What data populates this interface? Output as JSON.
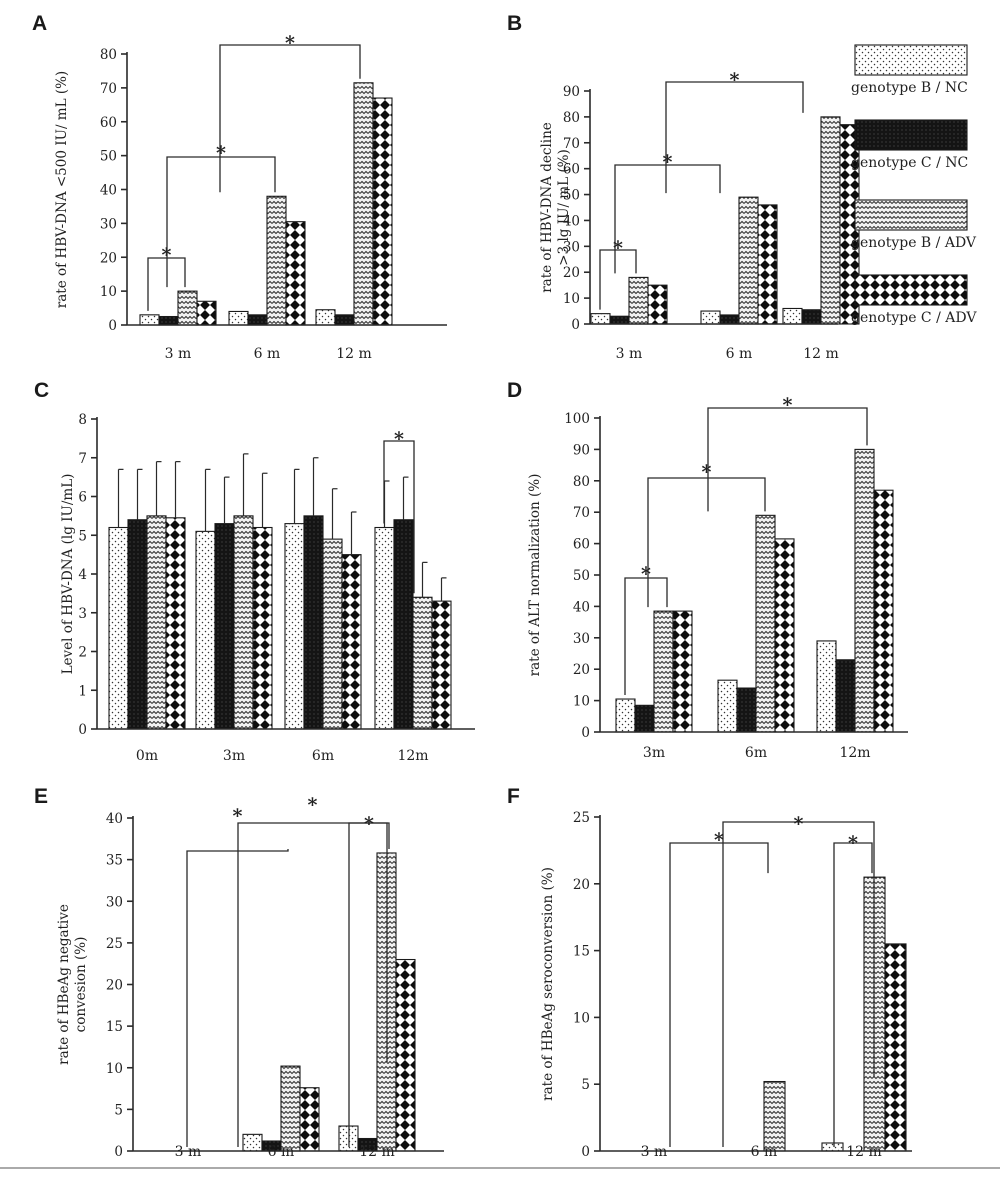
{
  "legend": [
    {
      "label": "genotype B / NC",
      "pattern": "dots"
    },
    {
      "label": "genotype C / NC",
      "pattern": "black"
    },
    {
      "label": "genotype B / ADV",
      "pattern": "zigzag"
    },
    {
      "label": "genotype C / ADV",
      "pattern": "diamond"
    }
  ],
  "chart_data": [
    {
      "panel": "A",
      "type": "bar",
      "ylabel": "rate of HBV-DNA <500 IU/ mL (%)",
      "ylim": [
        0,
        80
      ],
      "yticks": [
        0,
        10,
        20,
        30,
        40,
        50,
        60,
        70,
        80
      ],
      "categories": [
        "3 m",
        "6 m",
        "12 m"
      ],
      "series": [
        {
          "name": "genotype B / NC",
          "values": [
            3,
            4,
            4.5
          ]
        },
        {
          "name": "genotype C / NC",
          "values": [
            2.5,
            3,
            3
          ]
        },
        {
          "name": "genotype B / ADV",
          "values": [
            10,
            38,
            71.5
          ]
        },
        {
          "name": "genotype C / ADV",
          "values": [
            7,
            30.5,
            67
          ]
        }
      ],
      "significance": [
        {
          "from": [
            0,
            0
          ],
          "to": [
            0,
            2
          ],
          "label": "*"
        },
        {
          "from": [
            0,
            2
          ],
          "to": [
            1,
            2
          ],
          "label": "*"
        },
        {
          "from": [
            1,
            2
          ],
          "to": [
            2,
            2
          ],
          "label": "*"
        }
      ]
    },
    {
      "panel": "B",
      "type": "bar",
      "ylabel": [
        "rate of HBV-DNA decline",
        ">3 lg IU/ mL (%)"
      ],
      "ylim": [
        0,
        90
      ],
      "yticks": [
        0,
        10,
        20,
        30,
        40,
        50,
        60,
        70,
        80,
        90
      ],
      "categories": [
        "3 m",
        "6 m",
        "12 m"
      ],
      "series": [
        {
          "name": "genotype B / NC",
          "values": [
            4,
            5,
            6
          ]
        },
        {
          "name": "genotype C / NC",
          "values": [
            3,
            3.5,
            5.5
          ]
        },
        {
          "name": "genotype B / ADV",
          "values": [
            18,
            49,
            80
          ]
        },
        {
          "name": "genotype C / ADV",
          "values": [
            15,
            46,
            77
          ]
        }
      ],
      "significance": [
        {
          "from": [
            0,
            0
          ],
          "to": [
            0,
            2
          ],
          "label": "*"
        },
        {
          "from": [
            0,
            2
          ],
          "to": [
            1,
            2
          ],
          "label": "*"
        },
        {
          "from": [
            1,
            2
          ],
          "to": [
            2,
            2
          ],
          "label": "*"
        }
      ]
    },
    {
      "panel": "C",
      "type": "bar",
      "ylabel": "Level of HBV-DNA (lg IU/mL)",
      "ylim": [
        0,
        8
      ],
      "yticks": [
        0,
        1,
        2,
        3,
        4,
        5,
        6,
        7,
        8
      ],
      "categories": [
        "0m",
        "3m",
        "6m",
        "12m"
      ],
      "series": [
        {
          "name": "genotype B / NC",
          "values": [
            5.2,
            5.1,
            5.3,
            5.2
          ],
          "error": [
            1.5,
            1.6,
            1.4,
            1.2
          ]
        },
        {
          "name": "genotype C / NC",
          "values": [
            5.4,
            5.3,
            5.5,
            5.4
          ],
          "error": [
            1.3,
            1.2,
            1.5,
            1.1
          ]
        },
        {
          "name": "genotype B / ADV",
          "values": [
            5.5,
            5.5,
            4.9,
            3.4
          ],
          "error": [
            1.4,
            1.6,
            1.3,
            0.9
          ]
        },
        {
          "name": "genotype C / ADV",
          "values": [
            5.45,
            5.2,
            4.5,
            3.3
          ],
          "error": [
            1.45,
            1.4,
            1.1,
            0.6
          ]
        }
      ],
      "significance": [
        {
          "from": [
            3,
            0
          ],
          "to": [
            3,
            2
          ],
          "label": "*"
        }
      ]
    },
    {
      "panel": "D",
      "type": "bar",
      "ylabel": "rate of ALT normalization (%)",
      "ylim": [
        0,
        100
      ],
      "yticks": [
        0,
        10,
        20,
        30,
        40,
        50,
        60,
        70,
        80,
        90,
        100
      ],
      "categories": [
        "3m",
        "6m",
        "12m"
      ],
      "series": [
        {
          "name": "genotype B / NC",
          "values": [
            10.5,
            16.5,
            29
          ]
        },
        {
          "name": "genotype C / NC",
          "values": [
            8.5,
            14,
            23
          ]
        },
        {
          "name": "genotype B / ADV",
          "values": [
            38.5,
            69,
            90
          ]
        },
        {
          "name": "genotype C / ADV",
          "values": [
            38.5,
            61.5,
            77
          ]
        }
      ],
      "significance": [
        {
          "from": [
            0,
            0
          ],
          "to": [
            0,
            2
          ],
          "label": "*"
        },
        {
          "from": [
            0,
            2
          ],
          "to": [
            1,
            2
          ],
          "label": "*"
        },
        {
          "from": [
            1,
            2
          ],
          "to": [
            2,
            2
          ],
          "label": "*"
        }
      ]
    },
    {
      "panel": "E",
      "type": "bar",
      "ylabel": [
        "rate of HBeAg negative",
        "convesion (%)"
      ],
      "ylim": [
        0,
        40
      ],
      "yticks": [
        0,
        5,
        10,
        15,
        20,
        25,
        30,
        35,
        40
      ],
      "categories": [
        "3 m",
        "6 m",
        "12 m"
      ],
      "series": [
        {
          "name": "genotype B / NC",
          "values": [
            0,
            2,
            3
          ]
        },
        {
          "name": "genotype C / NC",
          "values": [
            0,
            1.2,
            1.5
          ]
        },
        {
          "name": "genotype B / ADV",
          "values": [
            0,
            10.2,
            35.8
          ]
        },
        {
          "name": "genotype C / ADV",
          "values": [
            0,
            7.6,
            23
          ]
        }
      ],
      "significance": [
        {
          "from": [
            0,
            1
          ],
          "to": [
            1,
            2
          ],
          "label": "*"
        },
        {
          "from": [
            0,
            1
          ],
          "to": [
            2,
            2
          ],
          "label": "*"
        },
        {
          "from": [
            2,
            0
          ],
          "to": [
            2,
            2
          ],
          "label": "*"
        }
      ]
    },
    {
      "panel": "F",
      "type": "bar",
      "ylabel": "rate of HBeAg seroconversion (%)",
      "ylim": [
        0,
        25
      ],
      "yticks": [
        0,
        5,
        10,
        15,
        20,
        25
      ],
      "categories": [
        "3 m",
        "6 m",
        "12 m"
      ],
      "series": [
        {
          "name": "genotype B / NC",
          "values": [
            0,
            0,
            0.6
          ]
        },
        {
          "name": "genotype C / NC",
          "values": [
            0,
            0,
            0
          ]
        },
        {
          "name": "genotype B / ADV",
          "values": [
            0,
            5.2,
            20.5
          ]
        },
        {
          "name": "genotype C / ADV",
          "values": [
            0,
            0,
            15.5
          ]
        }
      ],
      "significance": [
        {
          "from": [
            0,
            1
          ],
          "to": [
            1,
            2
          ],
          "label": "*"
        },
        {
          "from": [
            0,
            1
          ],
          "to": [
            2,
            2
          ],
          "label": "*"
        },
        {
          "from": [
            2,
            0
          ],
          "to": [
            2,
            2
          ],
          "label": "*"
        }
      ]
    }
  ]
}
